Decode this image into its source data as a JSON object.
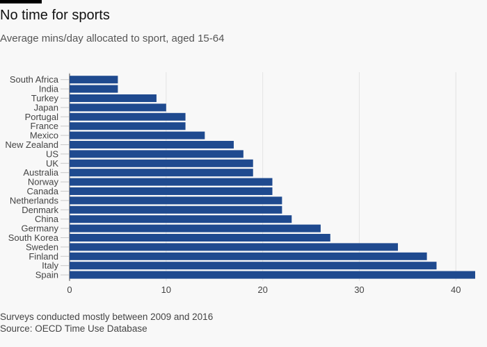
{
  "header": {
    "title": "No time for sports",
    "subtitle": "Average mins/day allocated to sport, aged 15-64"
  },
  "footer": {
    "note": "Surveys conducted mostly between 2009 and 2016",
    "source": "Source: OECD Time Use Database"
  },
  "colors": {
    "bar": "#1f4a8f",
    "grid": "#e3e3e3",
    "axis": "#444444",
    "background": "#f8f8f8"
  },
  "chart_data": {
    "type": "bar",
    "orientation": "horizontal",
    "title": "No time for sports",
    "subtitle": "Average mins/day allocated to sport, aged 15-64",
    "xlabel": "",
    "ylabel": "",
    "xlim": [
      0,
      42
    ],
    "xticks": [
      0,
      10,
      20,
      30,
      40
    ],
    "grid": true,
    "categories": [
      "South Africa",
      "India",
      "Turkey",
      "Japan",
      "Portugal",
      "France",
      "Mexico",
      "New Zealand",
      "US",
      "UK",
      "Australia",
      "Norway",
      "Canada",
      "Netherlands",
      "Denmark",
      "China",
      "Germany",
      "South Korea",
      "Sweden",
      "Finland",
      "Italy",
      "Spain"
    ],
    "values": [
      5,
      5,
      9,
      10,
      12,
      12,
      14,
      17,
      18,
      19,
      19,
      21,
      21,
      22,
      22,
      23,
      26,
      27,
      34,
      37,
      38,
      42
    ]
  }
}
